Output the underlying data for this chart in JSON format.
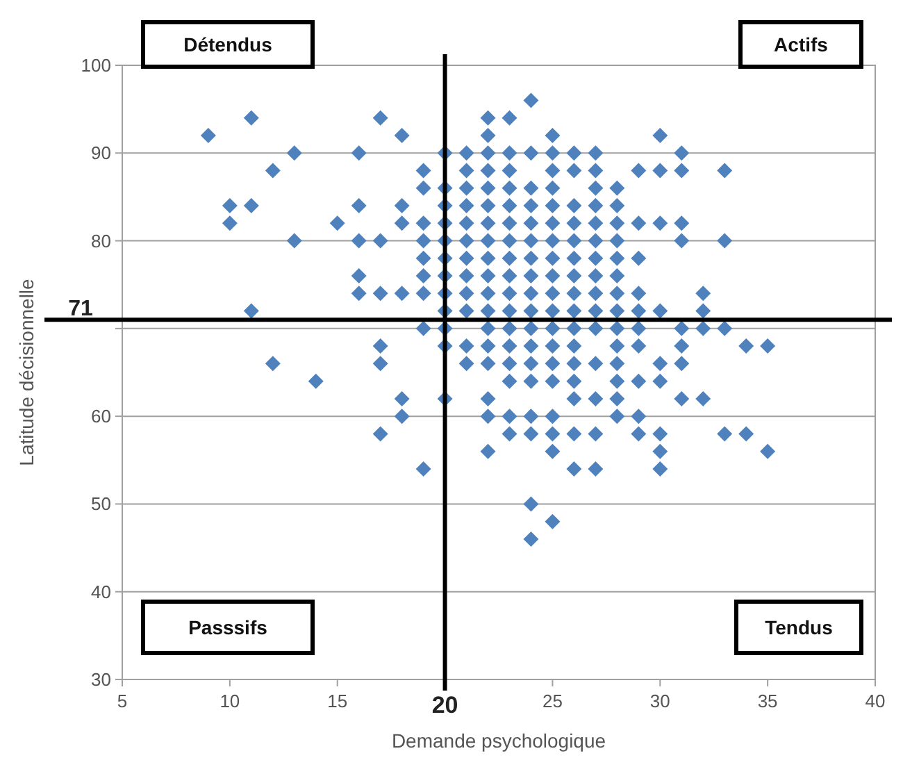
{
  "chart_data": {
    "type": "scatter",
    "xlabel": "Demande psychologique",
    "ylabel": "Latitude décisionnelle",
    "xlim": [
      5,
      40
    ],
    "xticks": [
      5,
      10,
      15,
      {
        "value": 20,
        "label": null
      },
      25,
      30,
      35,
      40
    ],
    "ylim": [
      30,
      100
    ],
    "yticks": [
      30,
      40,
      50,
      60,
      {
        "value": 70,
        "label": null
      },
      80,
      90,
      100
    ],
    "grid": "y",
    "marker": "diamond",
    "ref_lines": [
      {
        "axis": "x",
        "value": 20,
        "label": "20",
        "color": "#000000"
      },
      {
        "axis": "y",
        "value": 71,
        "label": "71",
        "color": "#000000"
      }
    ],
    "annotations": [
      "Détendus",
      "Actifs",
      "Passsifs",
      "Tendus"
    ],
    "series": [
      {
        "color": "#4f81bd",
        "x": [
          24,
          11,
          17,
          22,
          23,
          9,
          18,
          22,
          25,
          30,
          13,
          16,
          20,
          21,
          22,
          23,
          24,
          25,
          26,
          27,
          31,
          12,
          19,
          21,
          22,
          23,
          25,
          26,
          27,
          29,
          30,
          31,
          33,
          19,
          20,
          21,
          22,
          23,
          24,
          25,
          27,
          28,
          10,
          11,
          16,
          18,
          20,
          21,
          22,
          23,
          24,
          25,
          26,
          27,
          28,
          10,
          15,
          18,
          19,
          20,
          21,
          22,
          23,
          24,
          25,
          26,
          27,
          28,
          29,
          30,
          31,
          13,
          16,
          17,
          19,
          20,
          21,
          22,
          23,
          24,
          25,
          26,
          27,
          28,
          31,
          33,
          19,
          20,
          21,
          22,
          23,
          24,
          25,
          26,
          27,
          28,
          29,
          16,
          19,
          20,
          21,
          22,
          23,
          24,
          25,
          26,
          27,
          28,
          16,
          17,
          18,
          19,
          20,
          21,
          22,
          23,
          24,
          25,
          26,
          27,
          28,
          29,
          32,
          11,
          20,
          21,
          22,
          23,
          24,
          25,
          26,
          27,
          28,
          29,
          30,
          32,
          19,
          20,
          22,
          23,
          24,
          25,
          26,
          27,
          28,
          29,
          31,
          32,
          33,
          17,
          20,
          21,
          22,
          23,
          24,
          25,
          26,
          28,
          29,
          31,
          34,
          35,
          12,
          17,
          21,
          22,
          23,
          24,
          25,
          26,
          27,
          28,
          30,
          31,
          14,
          23,
          24,
          25,
          26,
          28,
          29,
          30,
          18,
          20,
          22,
          26,
          27,
          28,
          31,
          32,
          18,
          22,
          23,
          24,
          25,
          28,
          29,
          17,
          23,
          24,
          25,
          26,
          27,
          29,
          30,
          33,
          34,
          22,
          25,
          30,
          35,
          19,
          26,
          27,
          30,
          24,
          25,
          24
        ],
        "values": [
          96,
          94,
          94,
          94,
          94,
          92,
          92,
          92,
          92,
          92,
          90,
          90,
          90,
          90,
          90,
          90,
          90,
          90,
          90,
          90,
          90,
          88,
          88,
          88,
          88,
          88,
          88,
          88,
          88,
          88,
          88,
          88,
          88,
          86,
          86,
          86,
          86,
          86,
          86,
          86,
          86,
          86,
          84,
          84,
          84,
          84,
          84,
          84,
          84,
          84,
          84,
          84,
          84,
          84,
          84,
          82,
          82,
          82,
          82,
          82,
          82,
          82,
          82,
          82,
          82,
          82,
          82,
          82,
          82,
          82,
          82,
          80,
          80,
          80,
          80,
          80,
          80,
          80,
          80,
          80,
          80,
          80,
          80,
          80,
          80,
          80,
          78,
          78,
          78,
          78,
          78,
          78,
          78,
          78,
          78,
          78,
          78,
          76,
          76,
          76,
          76,
          76,
          76,
          76,
          76,
          76,
          76,
          76,
          74,
          74,
          74,
          74,
          74,
          74,
          74,
          74,
          74,
          74,
          74,
          74,
          74,
          74,
          74,
          72,
          72,
          72,
          72,
          72,
          72,
          72,
          72,
          72,
          72,
          72,
          72,
          72,
          70,
          70,
          70,
          70,
          70,
          70,
          70,
          70,
          70,
          70,
          70,
          70,
          70,
          68,
          68,
          68,
          68,
          68,
          68,
          68,
          68,
          68,
          68,
          68,
          68,
          68,
          66,
          66,
          66,
          66,
          66,
          66,
          66,
          66,
          66,
          66,
          66,
          66,
          64,
          64,
          64,
          64,
          64,
          64,
          64,
          64,
          62,
          62,
          62,
          62,
          62,
          62,
          62,
          62,
          60,
          60,
          60,
          60,
          60,
          60,
          60,
          58,
          58,
          58,
          58,
          58,
          58,
          58,
          58,
          58,
          58,
          56,
          56,
          56,
          56,
          54,
          54,
          54,
          54,
          50,
          48,
          46
        ]
      }
    ]
  }
}
